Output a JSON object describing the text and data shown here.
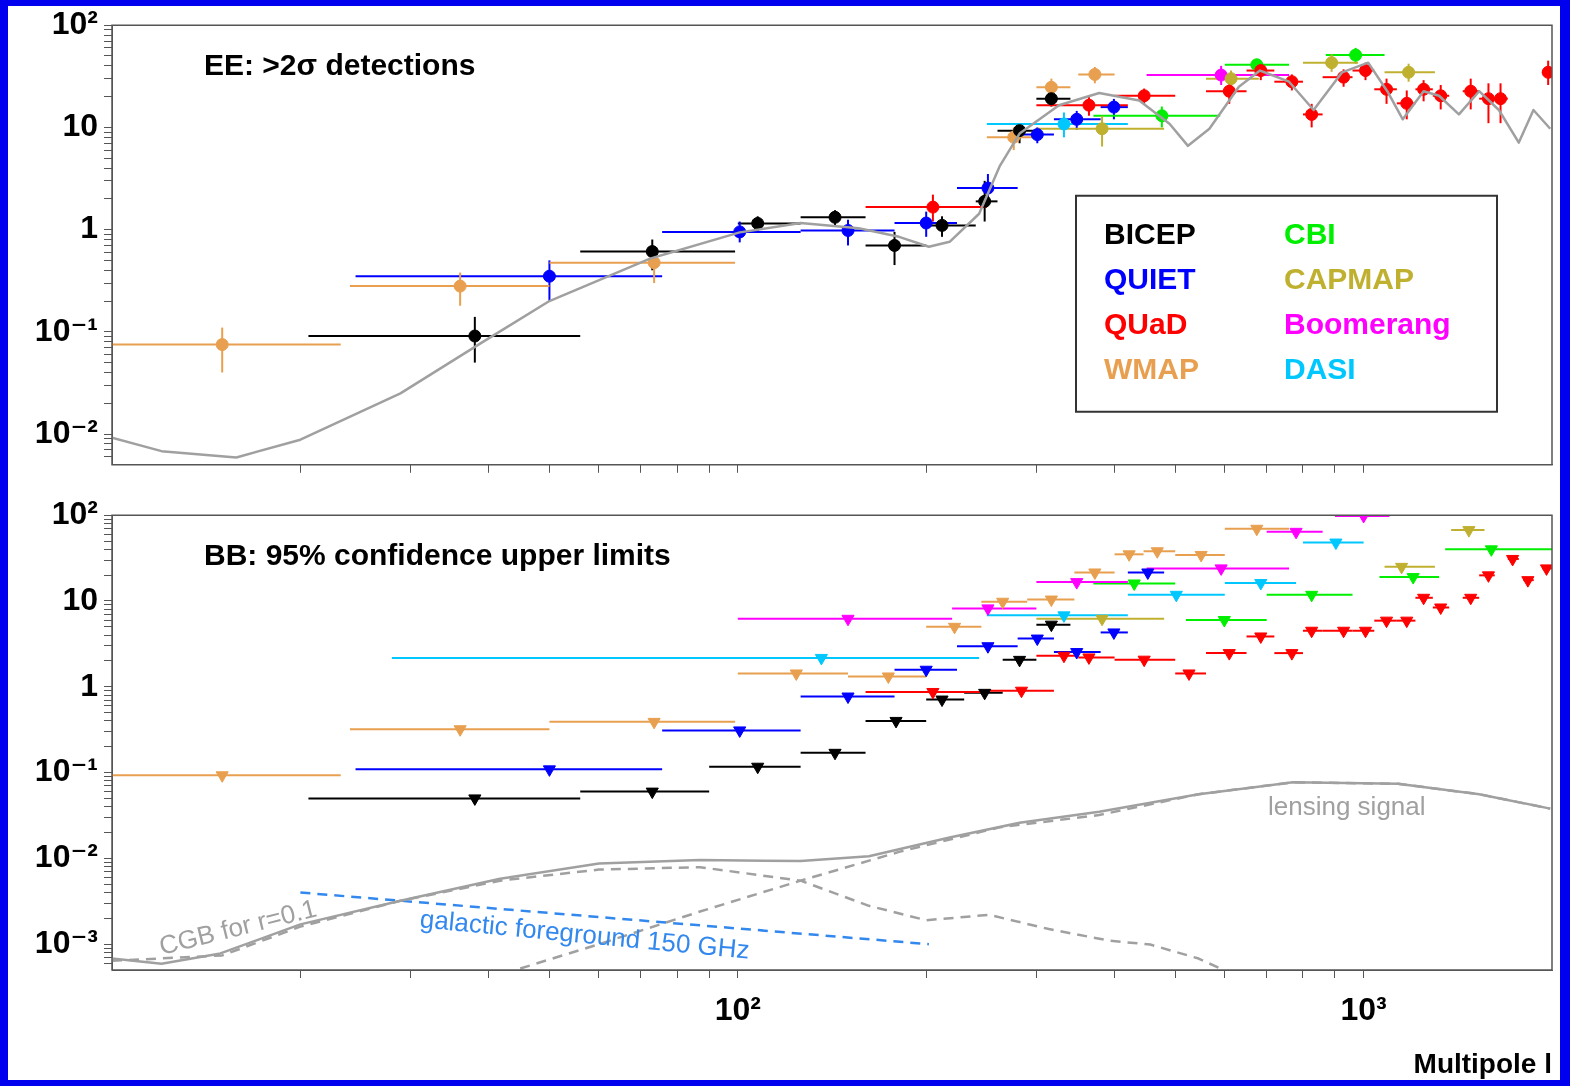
{
  "chart_data": [
    {
      "type": "scatter",
      "title": "EE: >2σ detections",
      "log": "xy",
      "marker": "circle",
      "legend": "bottom right",
      "tick_labels": "y",
      "xlim": [
        10,
        2000
      ],
      "ylim": [
        0.005,
        100
      ],
      "xticks": [
        {
          "value": 20,
          "label": null
        },
        {
          "value": 30,
          "label": null
        },
        {
          "value": 40,
          "label": null
        },
        {
          "value": 50,
          "label": null
        },
        {
          "value": 60,
          "label": null
        },
        {
          "value": 70,
          "label": null
        },
        {
          "value": 80,
          "label": null
        },
        {
          "value": 90,
          "label": null
        },
        {
          "value": 100,
          "label": null
        },
        {
          "value": 200,
          "label": null
        },
        {
          "value": 300,
          "label": null
        },
        {
          "value": 400,
          "label": null
        },
        {
          "value": 500,
          "label": null
        },
        {
          "value": 600,
          "label": null
        },
        {
          "value": 700,
          "label": null
        },
        {
          "value": 800,
          "label": null
        },
        {
          "value": 900,
          "label": null
        },
        {
          "value": 1000,
          "label": null
        }
      ],
      "yticks": [
        {
          "value": 0.006,
          "label": null
        },
        {
          "value": 0.007,
          "label": null
        },
        {
          "value": 0.008,
          "label": null
        },
        {
          "value": 0.009,
          "label": null
        },
        {
          "value": 0.01,
          "label": "10⁻²"
        },
        {
          "value": 0.02,
          "label": null
        },
        {
          "value": 0.03,
          "label": null
        },
        {
          "value": 0.04,
          "label": null
        },
        {
          "value": 0.05,
          "label": null
        },
        {
          "value": 0.06,
          "label": null
        },
        {
          "value": 0.07,
          "label": null
        },
        {
          "value": 0.08,
          "label": null
        },
        {
          "value": 0.09,
          "label": null
        },
        {
          "value": 0.1,
          "label": "10⁻¹"
        },
        {
          "value": 0.2,
          "label": null
        },
        {
          "value": 0.3,
          "label": null
        },
        {
          "value": 0.4,
          "label": null
        },
        {
          "value": 0.5,
          "label": null
        },
        {
          "value": 0.6,
          "label": null
        },
        {
          "value": 0.7,
          "label": null
        },
        {
          "value": 0.8,
          "label": null
        },
        {
          "value": 0.9,
          "label": null
        },
        {
          "value": 1,
          "label": "1"
        },
        {
          "value": 2,
          "label": null
        },
        {
          "value": 3,
          "label": null
        },
        {
          "value": 4,
          "label": null
        },
        {
          "value": 5,
          "label": null
        },
        {
          "value": 6,
          "label": null
        },
        {
          "value": 7,
          "label": null
        },
        {
          "value": 8,
          "label": null
        },
        {
          "value": 9,
          "label": null
        },
        {
          "value": 10,
          "label": "10"
        },
        {
          "value": 20,
          "label": null
        },
        {
          "value": 30,
          "label": null
        },
        {
          "value": 40,
          "label": null
        },
        {
          "value": 50,
          "label": null
        },
        {
          "value": 60,
          "label": null
        },
        {
          "value": 70,
          "label": null
        },
        {
          "value": 80,
          "label": null
        },
        {
          "value": 90,
          "label": null
        },
        {
          "value": 100,
          "label": "10²"
        }
      ],
      "series": [
        {
          "type": "line",
          "marker": "none",
          "color": "#a0a0a0",
          "x": [
            10,
            12,
            15.8,
            20,
            28.9,
            38.8,
            50,
            72.4,
            100.7,
            126,
            156,
            181,
            202,
            218,
            243,
            262,
            282,
            326,
            378,
            438,
            490,
            524,
            567,
            632,
            683,
            760,
            832,
            924,
            1017,
            1091,
            1155,
            1247,
            1320,
            1420,
            1530,
            1645,
            1770,
            1868,
            1987
          ],
          "values": [
            0.0092,
            0.0068,
            0.0059,
            0.0088,
            0.025,
            0.077,
            0.2,
            0.52,
            0.94,
            1.16,
            1.03,
            0.85,
            0.68,
            0.76,
            1.43,
            4.15,
            8.7,
            16.5,
            21.7,
            18.3,
            10.8,
            6.6,
            9.7,
            25,
            36,
            28,
            14.8,
            34.6,
            43,
            22.6,
            12,
            22.6,
            20.4,
            13.4,
            22.6,
            14.8,
            7.1,
            14.8,
            9.7
          ]
        },
        {
          "name": "BICEP",
          "color": "#000000",
          "x": [
            38,
            73,
            107.6,
            143,
            178,
            212,
            248,
            282,
            317
          ],
          "values": [
            0.091,
            0.61,
            1.15,
            1.32,
            0.7,
            1.1,
            1.89,
            9.3,
            19.1
          ],
          "xerrors": [
            [
              20.6,
              56
            ],
            [
              56,
              99
            ],
            [
              100,
              126
            ],
            [
              126,
              160
            ],
            [
              160,
              200
            ],
            [
              200,
              240
            ],
            [
              240,
              260
            ],
            [
              260,
              300
            ],
            [
              300,
              340
            ]
          ],
          "errors": [
            [
              0.05,
              0.14
            ],
            [
              0.4,
              0.8
            ],
            [
              0.95,
              1.35
            ],
            [
              1.1,
              1.55
            ],
            [
              0.45,
              0.95
            ],
            [
              0.85,
              1.35
            ],
            [
              1.2,
              3
            ],
            [
              7,
              11
            ],
            [
              16,
              22
            ]
          ]
        },
        {
          "name": "QUIET",
          "color": "#0000ff",
          "x": [
            50,
            100.7,
            150,
            200,
            251,
            301,
            348,
            399
          ],
          "values": [
            0.35,
            0.95,
            0.98,
            1.16,
            2.55,
            8.5,
            12,
            15.8
          ],
          "xerrors": [
            [
              24.5,
              75.7
            ],
            [
              75.7,
              126
            ],
            [
              126,
              178
            ],
            [
              178,
              224
            ],
            [
              224,
              280
            ],
            [
              280,
              320
            ],
            [
              320,
              380
            ],
            [
              380,
              420
            ]
          ],
          "errors": [
            [
              0.2,
              0.5
            ],
            [
              0.75,
              1.2
            ],
            [
              0.7,
              1.25
            ],
            [
              0.85,
              1.5
            ],
            [
              1.8,
              3.5
            ],
            [
              7,
              10
            ],
            [
              9.5,
              14.5
            ],
            [
              12,
              19
            ]
          ]
        },
        {
          "name": "QUaD",
          "color": "#ff0000",
          "x": [
            205,
            364,
            446,
            610,
            685,
            768,
            826,
            929,
            1007,
            1088,
            1172,
            1247,
            1328,
            1483,
            1583,
            1655,
            1972
          ],
          "values": [
            1.66,
            16.5,
            20.4,
            22.6,
            36,
            28,
            13.4,
            31,
            36,
            23.6,
            17.2,
            23.6,
            20.4,
            22.6,
            19.1,
            19.1,
            34.6
          ],
          "xerrors": [
            [
              160,
              250
            ],
            [
              300,
              420
            ],
            [
              400,
              500
            ],
            [
              560,
              650
            ],
            [
              650,
              720
            ],
            [
              720,
              800
            ],
            [
              800,
              860
            ],
            [
              860,
              960
            ],
            [
              960,
              1040
            ],
            [
              1040,
              1130
            ],
            [
              1130,
              1210
            ],
            [
              1210,
              1290
            ],
            [
              1290,
              1370
            ],
            [
              1440,
              1530
            ],
            [
              1530,
              1620
            ],
            [
              1620,
              1700
            ],
            [
              1930,
              2000
            ]
          ],
          "errors": [
            [
              1.2,
              2.2
            ],
            [
              13,
              20
            ],
            [
              17,
              24
            ],
            [
              17,
              28
            ],
            [
              29,
              43
            ],
            [
              23,
              33
            ],
            [
              10,
              17
            ],
            [
              25,
              37
            ],
            [
              29,
              43
            ],
            [
              17,
              30
            ],
            [
              12,
              23
            ],
            [
              18,
              29
            ],
            [
              15,
              26
            ],
            [
              15,
              30
            ],
            [
              11,
              27
            ],
            [
              11,
              27
            ],
            [
              26,
              45
            ]
          ]
        },
        {
          "name": "WMAP",
          "color": "#e8a050",
          "x": [
            15,
            36,
            73.5,
            276,
            317,
            372
          ],
          "values": [
            0.075,
            0.28,
            0.475,
            8,
            24.7,
            33
          ],
          "xerrors": [
            [
              10,
              23.2
            ],
            [
              24,
              50
            ],
            [
              50,
              99
            ],
            [
              250,
              300
            ],
            [
              300,
              340
            ],
            [
              350,
              400
            ]
          ],
          "errors": [
            [
              0.04,
              0.11
            ],
            [
              0.18,
              0.38
            ],
            [
              0.3,
              0.65
            ],
            [
              6,
              10
            ],
            [
              20,
              30
            ],
            [
              27,
              39
            ]
          ]
        },
        {
          "name": "CBI",
          "color": "#00ee00",
          "x": [
            476,
            675,
            971
          ],
          "values": [
            13,
            41,
            51
          ],
          "xerrors": [
            [
              370,
              590
            ],
            [
              600,
              760
            ],
            [
              870,
              1080
            ]
          ],
          "errors": [
            [
              10,
              16
            ],
            [
              36,
              46
            ],
            [
              42,
              60
            ]
          ]
        },
        {
          "name": "CAPMAP",
          "color": "#c0b030",
          "x": [
            382,
            614,
            889,
            1180
          ],
          "values": [
            9.7,
            30,
            43,
            34.6
          ],
          "xerrors": [
            [
              300,
              480
            ],
            [
              560,
              680
            ],
            [
              800,
              980
            ],
            [
              1080,
              1300
            ]
          ],
          "errors": [
            [
              6.5,
              13
            ],
            [
              25,
              36
            ],
            [
              35,
              52
            ],
            [
              28,
              42
            ]
          ]
        },
        {
          "name": "Boomerang",
          "color": "#ff00ff",
          "x": [
            592
          ],
          "values": [
            32.5
          ],
          "xerrors": [
            [
              450,
              760
            ]
          ],
          "errors": [
            [
              26,
              40
            ]
          ]
        },
        {
          "name": "DASI",
          "color": "#00c8ff",
          "x": [
            332
          ],
          "values": [
            10.8
          ],
          "xerrors": [
            [
              250,
              420
            ]
          ],
          "errors": [
            [
              8,
              14
            ]
          ]
        }
      ]
    },
    {
      "type": "scatter",
      "title": "BB: 95% confidence upper limits",
      "xlabel": "Multipole l",
      "log": "xy",
      "marker": "triangle",
      "xlim": [
        10,
        2000
      ],
      "ylim": [
        0.0005,
        100
      ],
      "xticks": [
        {
          "value": 20,
          "label": null
        },
        {
          "value": 30,
          "label": null
        },
        {
          "value": 40,
          "label": null
        },
        {
          "value": 50,
          "label": null
        },
        {
          "value": 60,
          "label": null
        },
        {
          "value": 70,
          "label": null
        },
        {
          "value": 80,
          "label": null
        },
        {
          "value": 90,
          "label": null
        },
        {
          "value": 100,
          "label": "10²"
        },
        {
          "value": 200,
          "label": null
        },
        {
          "value": 300,
          "label": null
        },
        {
          "value": 400,
          "label": null
        },
        {
          "value": 500,
          "label": null
        },
        {
          "value": 600,
          "label": null
        },
        {
          "value": 700,
          "label": null
        },
        {
          "value": 800,
          "label": null
        },
        {
          "value": 900,
          "label": null
        },
        {
          "value": 1000,
          "label": "10³"
        }
      ],
      "yticks": [
        {
          "value": 0.0006,
          "label": null
        },
        {
          "value": 0.0007,
          "label": null
        },
        {
          "value": 0.0008,
          "label": null
        },
        {
          "value": 0.0009,
          "label": null
        },
        {
          "value": 0.001,
          "label": "10⁻³"
        },
        {
          "value": 0.002,
          "label": null
        },
        {
          "value": 0.003,
          "label": null
        },
        {
          "value": 0.004,
          "label": null
        },
        {
          "value": 0.005,
          "label": null
        },
        {
          "value": 0.006,
          "label": null
        },
        {
          "value": 0.007,
          "label": null
        },
        {
          "value": 0.008,
          "label": null
        },
        {
          "value": 0.009,
          "label": null
        },
        {
          "value": 0.01,
          "label": "10⁻²"
        },
        {
          "value": 0.02,
          "label": null
        },
        {
          "value": 0.03,
          "label": null
        },
        {
          "value": 0.04,
          "label": null
        },
        {
          "value": 0.05,
          "label": null
        },
        {
          "value": 0.06,
          "label": null
        },
        {
          "value": 0.07,
          "label": null
        },
        {
          "value": 0.08,
          "label": null
        },
        {
          "value": 0.09,
          "label": null
        },
        {
          "value": 0.1,
          "label": "10⁻¹"
        },
        {
          "value": 0.2,
          "label": null
        },
        {
          "value": 0.3,
          "label": null
        },
        {
          "value": 0.4,
          "label": null
        },
        {
          "value": 0.5,
          "label": null
        },
        {
          "value": 0.6,
          "label": null
        },
        {
          "value": 0.7,
          "label": null
        },
        {
          "value": 0.8,
          "label": null
        },
        {
          "value": 0.9,
          "label": null
        },
        1,
        {
          "value": 2,
          "label": null
        },
        {
          "value": 3,
          "label": null
        },
        {
          "value": 4,
          "label": null
        },
        {
          "value": 5,
          "label": null
        },
        {
          "value": 6,
          "label": null
        },
        {
          "value": 7,
          "label": null
        },
        {
          "value": 8,
          "label": null
        },
        {
          "value": 9,
          "label": null
        },
        10,
        {
          "value": 20,
          "label": null
        },
        {
          "value": 30,
          "label": null
        },
        {
          "value": 40,
          "label": null
        },
        {
          "value": 50,
          "label": null
        },
        {
          "value": 60,
          "label": null
        },
        {
          "value": 70,
          "label": null
        },
        {
          "value": 80,
          "label": null
        },
        {
          "value": 90,
          "label": null
        },
        {
          "value": 100,
          "label": "10²"
        }
      ],
      "annotations": [
        "lensing signal",
        "CGB for r=0.1",
        "galactic foreground 150 GHz"
      ],
      "series": [
        {
          "type": "line",
          "marker": "none",
          "color": "#a0a0a0",
          "x": [
            10,
            12,
            14.9,
            20,
            28.9,
            41.7,
            60,
            87,
            126,
            162,
            218,
            282,
            378,
            545,
            770,
            1135,
            1530,
            1987
          ],
          "values": [
            0.00068,
            0.00059,
            0.00078,
            0.0017,
            0.0032,
            0.0058,
            0.0087,
            0.0096,
            0.0093,
            0.0106,
            0.0175,
            0.026,
            0.035,
            0.056,
            0.077,
            0.074,
            0.056,
            0.038
          ]
        },
        {
          "type": "line",
          "marker": "none",
          "line_style": "dashed",
          "color": "#a0a0a0",
          "x": [
            44.9,
            60,
            87,
            126,
            181,
            262,
            378,
            545,
            770,
            1135,
            1530,
            1987
          ],
          "values": [
            0.00052,
            0.001,
            0.0024,
            0.0055,
            0.0119,
            0.023,
            0.032,
            0.056,
            0.077,
            0.074,
            0.056,
            0.038
          ]
        },
        {
          "type": "line",
          "marker": "none",
          "line_style": "dashed",
          "color": "#a0a0a0",
          "x": [
            10,
            15,
            20,
            28.9,
            41.7,
            60,
            87,
            126,
            162,
            200,
            252,
            314,
            392,
            456,
            545,
            597
          ],
          "values": [
            0.00064,
            0.00074,
            0.0016,
            0.0032,
            0.0055,
            0.0074,
            0.0079,
            0.0055,
            0.0028,
            0.0019,
            0.0022,
            0.0015,
            0.0011,
            0.00099,
            0.00068,
            0.0005
          ]
        },
        {
          "type": "line",
          "marker": "none",
          "line_style": "dashed",
          "color": "#3388ee",
          "x": [
            20,
            202
          ],
          "values": [
            0.004,
            0.001
          ]
        },
        {
          "color": "#e8a050",
          "x": [
            15,
            36,
            73.5,
            124,
            174,
            222,
            265,
            317,
            372,
            422,
            468,
            550,
            675
          ],
          "values": [
            0.093,
            0.32,
            0.39,
            1.43,
            1.32,
            5,
            9.8,
            10.4,
            21.5,
            35,
            38,
            34.4,
            69.5
          ],
          "xerrors": [
            [
              10,
              23.2
            ],
            [
              24,
              50
            ],
            [
              50,
              99
            ],
            [
              100,
              150
            ],
            [
              150,
              200
            ],
            [
              200,
              245
            ],
            [
              245,
              290
            ],
            [
              290,
              345
            ],
            [
              345,
              400
            ],
            [
              400,
              445
            ],
            [
              445,
              500
            ],
            [
              500,
              600
            ],
            [
              600,
              760
            ]
          ]
        },
        {
          "color": "#000000",
          "x": [
            38,
            73,
            107.6,
            143,
            179,
            212,
            248,
            282,
            317
          ],
          "values": [
            0.05,
            0.06,
            0.117,
            0.17,
            0.4,
            0.71,
            0.85,
            2.06,
            5.3
          ],
          "xerrors": [
            [
              20.6,
              56
            ],
            [
              56,
              90
            ],
            [
              90,
              126
            ],
            [
              126,
              160
            ],
            [
              160,
              200
            ],
            [
              200,
              230
            ],
            [
              230,
              265
            ],
            [
              265,
              300
            ],
            [
              300,
              340
            ]
          ]
        },
        {
          "color": "#0000ff",
          "x": [
            50,
            100.7,
            150,
            200,
            251,
            301,
            348,
            399,
            452
          ],
          "values": [
            0.109,
            0.31,
            0.77,
            1.58,
            2.97,
            3.65,
            2.54,
            4.3,
            21.5
          ],
          "xerrors": [
            [
              24.5,
              75.7
            ],
            [
              75.7,
              126
            ],
            [
              126,
              178
            ],
            [
              178,
              224
            ],
            [
              224,
              280
            ],
            [
              280,
              320
            ],
            [
              320,
              380
            ],
            [
              380,
              420
            ],
            [
              420,
              480
            ]
          ]
        },
        {
          "color": "#ff0000",
          "x": [
            205,
            284,
            332,
            364,
            446,
            526,
            610,
            685,
            768,
            826,
            929,
            1007,
            1088,
            1172,
            1247,
            1328,
            1483,
            1583,
            1730,
            1830,
            1960
          ],
          "values": [
            0.87,
            0.9,
            2.3,
            2.2,
            2.07,
            1.43,
            2.47,
            3.86,
            2.47,
            4.5,
            4.5,
            4.5,
            5.9,
            5.9,
            10.9,
            8.4,
            10.9,
            19.9,
            30.9,
            17.5,
            24
          ],
          "xerrors": [
            [
              160,
              250
            ],
            [
              250,
              320
            ],
            [
              300,
              350
            ],
            [
              350,
              400
            ],
            [
              400,
              500
            ],
            [
              500,
              560
            ],
            [
              560,
              650
            ],
            [
              650,
              720
            ],
            [
              720,
              800
            ],
            [
              800,
              860
            ],
            [
              860,
              960
            ],
            [
              960,
              1040
            ],
            [
              1040,
              1130
            ],
            [
              1130,
              1210
            ],
            [
              1210,
              1290
            ],
            [
              1290,
              1370
            ],
            [
              1440,
              1530
            ],
            [
              1530,
              1620
            ],
            [
              1700,
              1770
            ],
            [
              1800,
              1870
            ],
            [
              1930,
              2000
            ]
          ]
        },
        {
          "color": "#00ee00",
          "x": [
            430,
            599,
            826,
            1200,
            1600
          ],
          "values": [
            16,
            6,
            11.8,
            19,
            40
          ],
          "xerrors": [
            [
              370,
              500
            ],
            [
              520,
              700
            ],
            [
              700,
              960
            ],
            [
              1060,
              1320
            ],
            [
              1350,
              2000
            ]
          ]
        },
        {
          "color": "#c0b030",
          "x": [
            382,
            1150,
            1473
          ],
          "values": [
            6.2,
            25,
            67
          ],
          "xerrors": [
            [
              300,
              480
            ],
            [
              1080,
              1300
            ],
            [
              1380,
              1560
            ]
          ]
        },
        {
          "color": "#ff00ff",
          "x": [
            150,
            251,
            348,
            592,
            780,
            1000
          ],
          "values": [
            6.2,
            8.2,
            16.6,
            24,
            64,
            98
          ],
          "xerrors": [
            [
              100,
              220
            ],
            [
              220,
              300
            ],
            [
              300,
              420
            ],
            [
              450,
              760
            ],
            [
              700,
              860
            ],
            [
              900,
              1100
            ]
          ]
        },
        {
          "color": "#00c8ff",
          "x": [
            136,
            332,
            502,
            685,
            903
          ],
          "values": [
            2.17,
            6.8,
            11.8,
            16.2,
            48
          ],
          "xerrors": [
            [
              28,
              243
            ],
            [
              250,
              420
            ],
            [
              420,
              600
            ],
            [
              600,
              780
            ],
            [
              800,
              1000
            ]
          ]
        }
      ]
    }
  ]
}
